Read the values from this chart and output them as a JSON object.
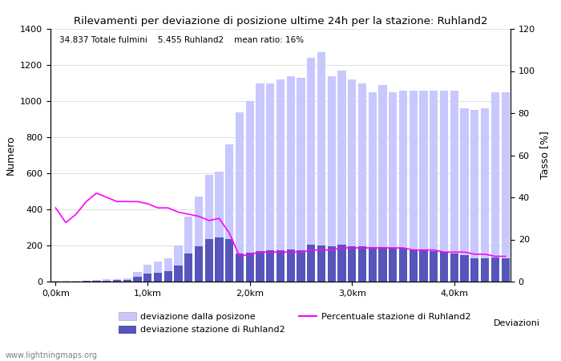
{
  "title": "Rilevamenti per deviazione di posizione ultime 24h per la stazione: Ruhland2",
  "subtitle": "34.837 Totale fulmini    5.455 Ruhland2    mean ratio: 16%",
  "xlabel": "Deviazioni",
  "ylabel_left": "Numero",
  "ylabel_right": "Tasso [%]",
  "watermark": "www.lightningmaps.org",
  "ylim_left": [
    0,
    1400
  ],
  "ylim_right": [
    0,
    120
  ],
  "xtick_labels": [
    "0,0km",
    "1,0km",
    "2,0km",
    "3,0km",
    "4,0km"
  ],
  "xtick_positions": [
    0,
    9,
    19,
    29,
    39
  ],
  "bar_width": 0.8,
  "color_light": "#c8c8ff",
  "color_dark": "#5555bb",
  "color_line": "#ff00ff",
  "total_bars": [
    5,
    3,
    4,
    6,
    10,
    12,
    15,
    20,
    55,
    95,
    110,
    130,
    200,
    360,
    470,
    590,
    610,
    760,
    940,
    1000,
    1100,
    1100,
    1120,
    1140,
    1130,
    1240,
    1270,
    1140,
    1170,
    1120,
    1100,
    1050,
    1090,
    1050,
    1060,
    1060,
    1060,
    1060,
    1060,
    1060,
    960,
    950,
    960,
    1050,
    1050
  ],
  "station_bars": [
    2,
    1,
    2,
    3,
    5,
    6,
    7,
    10,
    25,
    45,
    50,
    60,
    90,
    155,
    195,
    235,
    245,
    235,
    155,
    160,
    170,
    175,
    175,
    180,
    175,
    205,
    200,
    195,
    205,
    195,
    195,
    190,
    190,
    185,
    185,
    175,
    175,
    170,
    165,
    155,
    145,
    130,
    130,
    135,
    130
  ],
  "percentage": [
    35,
    28,
    32,
    38,
    42,
    40,
    38,
    38,
    38,
    37,
    35,
    35,
    33,
    32,
    31,
    29,
    30,
    23,
    12,
    13,
    14,
    14,
    14,
    14,
    14,
    15,
    15,
    15,
    16,
    16,
    16,
    16,
    16,
    16,
    16,
    15,
    15,
    15,
    14,
    14,
    14,
    13,
    13,
    12,
    12
  ]
}
